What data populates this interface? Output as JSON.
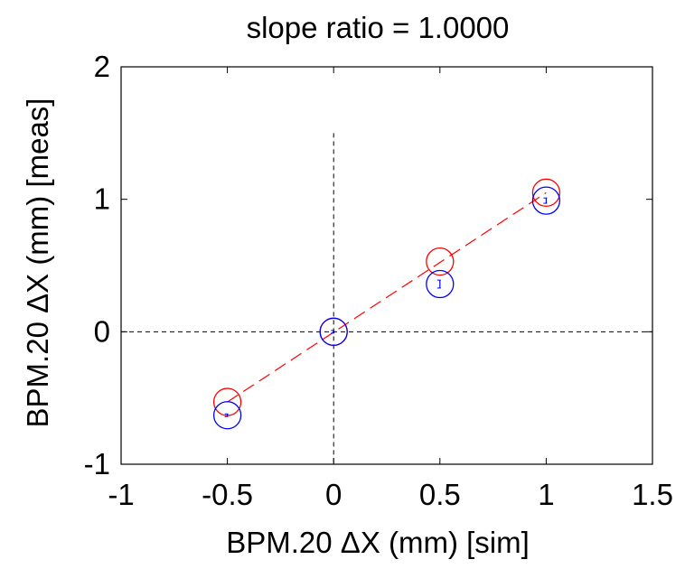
{
  "chart_data": {
    "type": "scatter",
    "title": "slope ratio = 1.0000",
    "xlabel_prefix": "BPM.20 ",
    "xlabel_delta": "Δ",
    "xlabel_suffix": "X (mm) [sim]",
    "ylabel_prefix": "BPM.20 ",
    "ylabel_delta": "Δ",
    "ylabel_suffix": "X (mm) [meas]",
    "xlim": [
      -1,
      1.5
    ],
    "ylim": [
      -1,
      2
    ],
    "xticks": [
      -1,
      -0.5,
      0,
      0.5,
      1,
      1.5
    ],
    "xtick_labels": [
      "-1",
      "-0.5",
      "0",
      "0.5",
      "1",
      "1.5"
    ],
    "yticks": [
      -1,
      0,
      1,
      2
    ],
    "ytick_labels": [
      "-1",
      "0",
      "1",
      "2"
    ],
    "grid": false,
    "series": [
      {
        "marker": "circle",
        "color": "#ff0000",
        "x": [
          -0.5,
          0,
          0.5,
          1.0
        ],
        "y": [
          -0.53,
          0.0,
          0.53,
          1.05
        ]
      },
      {
        "marker": "circle",
        "color": "#0000ff",
        "x": [
          -0.5,
          0,
          0.5,
          1.0
        ],
        "y": [
          -0.63,
          0.0,
          0.36,
          0.99
        ],
        "error_y": [
          0.01,
          0.01,
          0.03,
          0.02
        ]
      }
    ],
    "fit_line": {
      "color": "#ff0000",
      "style": "dashed",
      "x": [
        -0.5,
        1.0
      ],
      "y": [
        -0.53,
        1.05
      ]
    },
    "reference_lines": {
      "color": "#000000",
      "style": "dashed",
      "vertical_x": 0,
      "vertical_y_range": [
        -1,
        1.5
      ],
      "horizontal_y": 0
    }
  }
}
